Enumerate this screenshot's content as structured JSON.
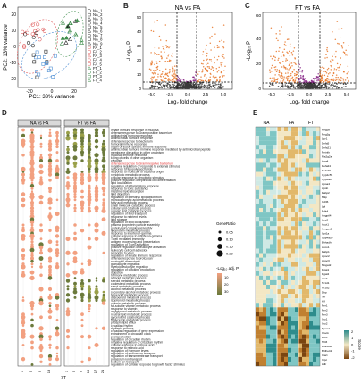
{
  "panels": {
    "a": {
      "letter": "A",
      "xlabel": "PC1: 33% variance",
      "ylabel": "PC2: 13% variance",
      "xticks": [
        "-20",
        "0",
        "20"
      ],
      "yticks": [
        "-20",
        "-10",
        "0",
        "10",
        "20"
      ],
      "legend_groups": [
        {
          "name": "NA_1",
          "shape": "circle"
        },
        {
          "name": "NA_2",
          "shape": "square"
        },
        {
          "name": "NA_3",
          "shape": "triangle"
        },
        {
          "name": "NA_4",
          "shape": "circle"
        },
        {
          "name": "NA_5",
          "shape": "square"
        },
        {
          "name": "NA_6",
          "shape": "triangle"
        },
        {
          "name": "NA_7",
          "shape": "circle"
        },
        {
          "name": "NA_8",
          "shape": "square"
        },
        {
          "name": "NA_9",
          "shape": "triangle"
        },
        {
          "name": "FA_1",
          "shape": "circle"
        },
        {
          "name": "FA_2",
          "shape": "square"
        },
        {
          "name": "FA_3",
          "shape": "triangle"
        },
        {
          "name": "FA_4",
          "shape": "circle"
        },
        {
          "name": "FA_5",
          "shape": "square"
        },
        {
          "name": "FT_1",
          "shape": "triangle"
        },
        {
          "name": "FT_2",
          "shape": "circle"
        },
        {
          "name": "FT_3",
          "shape": "square"
        },
        {
          "name": "FT_4",
          "shape": "triangle"
        }
      ]
    },
    "b": {
      "letter": "B",
      "title": "NA vs FA",
      "xlabel": "Log₂ fold change",
      "ylabel": "-Log₁₀ P",
      "xticks": [
        "-5.0",
        "-2.5",
        "0.0",
        "2.5",
        "5.0"
      ],
      "yticks": [
        "0",
        "10",
        "20",
        "30",
        "40",
        "50"
      ]
    },
    "c": {
      "letter": "C",
      "title": "FT vs FA",
      "xlabel": "Log₂ fold change",
      "ylabel": "-Log₁₀ P",
      "xticks": [
        "-5.0",
        "-2.5",
        "0.0",
        "2.5",
        "5.0"
      ],
      "yticks": [
        "0",
        "20",
        "40",
        "60"
      ]
    },
    "d": {
      "letter": "D",
      "facets": [
        "NA vs FA",
        "FT vs FA"
      ],
      "xticks_left": [
        "1",
        "5",
        "9",
        "13"
      ],
      "xticks_right": [
        "1",
        "5",
        "9",
        "13",
        "17",
        "21"
      ],
      "xlabel": "ZT",
      "size_legend_title": "GeneRatio",
      "size_legend": [
        "0.05",
        "0.10",
        "0.15",
        "0.20"
      ],
      "color_legend_title": "-Log₁₀ adj. P",
      "color_legend": [
        "10",
        "20",
        "30"
      ],
      "terms": [
        "innate immune response in mucosa",
        "defense response to Gram-positive bacterium",
        "antibacterial humoral response",
        "antimicrobial humoral response",
        "defense response to bacterium",
        "humoral immune response",
        "organ or tissue specific immune response",
        "antimicrobial humoral immune response mediated by antimicrobial peptide",
        "membrane disruption in other organism",
        "mucosal immune response",
        "killing of cells of other organism",
        "cytolysis",
        "defense response to Gram-negative bacterium",
        "negative regulation of response to external stimulus",
        "response to lipopolysaccharide",
        "response to molecule of bacterial origin",
        "xenobiotic metabolic process",
        "cellular response to xenobiotic stimulus",
        "positive regulation of epithelial cell differentiation",
        "lipid localization",
        "regulation of inflammatory response",
        "response to toxic substance",
        "intestinal lipid absorption",
        "lipid digestion",
        "regulation of intestinal lipid absorption",
        "monocarboxylic acid metabolic process",
        "fatty acid metabolic process",
        "small molecule catabolic process",
        "cellular lipid catabolic process",
        "organic acid catabolic process",
        "regulation of lipid transport",
        "response to nutrient levels",
        "lipid storage",
        "regulation of lipid localization",
        "plasma lipoprotein particle assembly",
        "protein-lipid complex assembly",
        "lipoprotein metabolic process",
        "response to interferon-gamma",
        "cellular response to interferon-gamma",
        "T cell mediated immunity",
        "antigen processing and presentation",
        "regulation of T cell activation",
        "positive regulation of leukocyte activation",
        "leukocyte cell-cell adhesion",
        "response to virus",
        "regulation of innate immune response",
        "defense response to protozoan",
        "neutrophil chemotaxis",
        "granulocyte migration",
        "myeloid leukocyte migration",
        "regulation of cytokine production",
        "digestion",
        "hormone metabolic process",
        "retinoid metabolic process",
        "steroid metabolic process",
        "cholesterol metabolic process",
        "sterol metabolic process",
        "alcohol metabolic process",
        "secondary alcohol metabolic process",
        "terpenoid metabolic process",
        "diterpenoid metabolic process",
        "isoprenoid metabolic process",
        "vitamin metabolic process",
        "fat-soluble vitamin metabolic process",
        "response to vitamin",
        "acylglycerol metabolic process",
        "neutral lipid metabolic process",
        "glycerolipid catabolic process",
        "triglyceride metabolic process",
        "phospholipid efflux",
        "circadian rhythm",
        "rhythmic process",
        "circadian regulation of gene expression",
        "entrainment of circadian clock",
        "photoperiodism",
        "regulation of circadian rhythm",
        "negative regulation of circadian rhythm",
        "cellular response to retinoic acid",
        "response to retinoic acid",
        "regulation of hormone levels",
        "regulation of sodium ion transport",
        "regulation of transmembrane transport",
        "potassium ion transport",
        "sodium ion transport",
        "regulation of cellular response to growth factor stimulus"
      ],
      "highlight_term_index": 12
    },
    "e": {
      "letter": "E",
      "col_groups": [
        "NA",
        "FA",
        "FT"
      ],
      "legend_title": "Score",
      "legend_values": [
        "2",
        "1",
        "0",
        "-1",
        "-2"
      ],
      "genes": [
        "Reg3b",
        "Reg3g",
        "Lyz1",
        "Defa5",
        "Defa21",
        "Retnlb",
        "Pla2g2a",
        "Ang4",
        "Defa24",
        "Defa26",
        "Cyp2c55",
        "Cyp3a11",
        "Apoa4",
        "Apob",
        "Fabp2",
        "Mttp",
        "Cd36",
        "Lpl",
        "Pdk4",
        "Angptl4",
        "Ucp2",
        "Acot1",
        "Hmgcs2",
        "Cpt1a",
        "Cyp4a10",
        "Ehhadh",
        "Acox1",
        "Fabp1",
        "Apoc2",
        "Apoc3",
        "Mogat2",
        "Dgat1",
        "Dgat2",
        "Arntl",
        "Nr1d1",
        "Nr1d2",
        "Dbp",
        "Tef",
        "Hlf",
        "Per1",
        "Per2",
        "Per3",
        "Cry1",
        "Cry2",
        "Npas2",
        "Clock",
        "Rorc",
        "Nfil3",
        "Bhlhe40",
        "Bhlhe41",
        "Ciart",
        "Cipc",
        "Ldlr"
      ]
    },
    "colors": {
      "accent_blue": "#4f8fd4",
      "accent_red": "#e06060",
      "accent_green": "#3c8c4a",
      "dot_salmon": "#f2a080",
      "dot_olive": "#6c7a3c",
      "volcano_orange": "#e8782c",
      "volcano_purple": "#8a2a88",
      "heat_teal": "#3aa5a8",
      "heat_brown": "#8c5012"
    }
  }
}
